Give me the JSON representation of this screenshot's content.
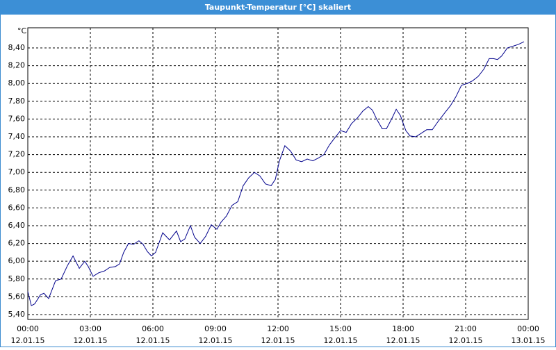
{
  "window_title": "Taupunkt-Temperatur [°C] skaliert",
  "chart_data": {
    "type": "line",
    "y_unit": "°C",
    "grid": true,
    "color": "#00008b",
    "x": [
      0,
      0.17,
      0.33,
      0.6,
      0.77,
      1,
      1.33,
      1.6,
      1.9,
      2.17,
      2.47,
      2.73,
      2.9,
      3.13,
      3.4,
      3.67,
      3.93,
      4.2,
      4.4,
      4.6,
      4.83,
      5.07,
      5.33,
      5.53,
      5.73,
      5.93,
      6.13,
      6.47,
      6.8,
      7.13,
      7.33,
      7.53,
      7.8,
      8,
      8.27,
      8.53,
      8.8,
      9.07,
      9.27,
      9.53,
      9.8,
      10.07,
      10.33,
      10.6,
      10.87,
      11.13,
      11.4,
      11.67,
      11.87,
      12.07,
      12.33,
      12.6,
      12.87,
      13.13,
      13.4,
      13.67,
      13.93,
      14.2,
      14.47,
      14.73,
      15,
      15.27,
      15.53,
      15.8,
      16.07,
      16.33,
      16.53,
      16.73,
      17,
      17.2,
      17.47,
      17.67,
      17.87,
      18.13,
      18.33,
      18.6,
      18.87,
      19.13,
      19.4,
      19.67,
      20,
      20.27,
      20.53,
      20.8,
      21.07,
      21.33,
      21.6,
      21.87,
      22.13,
      22.33,
      22.53,
      22.73,
      23,
      23.27,
      23.53,
      23.8
    ],
    "values": [
      5.66,
      5.5,
      5.52,
      5.62,
      5.64,
      5.58,
      5.78,
      5.8,
      5.95,
      6.06,
      5.92,
      6.0,
      5.94,
      5.83,
      5.87,
      5.89,
      5.93,
      5.94,
      5.97,
      6.1,
      6.2,
      6.19,
      6.23,
      6.19,
      6.11,
      6.06,
      6.1,
      6.32,
      6.24,
      6.34,
      6.22,
      6.25,
      6.4,
      6.27,
      6.2,
      6.28,
      6.41,
      6.36,
      6.44,
      6.51,
      6.63,
      6.67,
      6.85,
      6.94,
      7.0,
      6.96,
      6.87,
      6.85,
      6.92,
      7.13,
      7.3,
      7.24,
      7.14,
      7.12,
      7.15,
      7.13,
      7.16,
      7.2,
      7.31,
      7.39,
      7.47,
      7.45,
      7.55,
      7.61,
      7.69,
      7.74,
      7.7,
      7.6,
      7.49,
      7.49,
      7.61,
      7.71,
      7.64,
      7.47,
      7.41,
      7.4,
      7.44,
      7.48,
      7.48,
      7.57,
      7.67,
      7.75,
      7.85,
      7.98,
      8.0,
      8.03,
      8.08,
      8.16,
      8.28,
      8.28,
      8.27,
      8.31,
      8.4,
      8.42,
      8.44,
      8.47
    ],
    "xlim": [
      0,
      24
    ],
    "xticks": [
      {
        "value": 0,
        "label": "00:00"
      },
      {
        "value": 3,
        "label": "03:00"
      },
      {
        "value": 6,
        "label": "06:00"
      },
      {
        "value": 9,
        "label": "09:00"
      },
      {
        "value": 12,
        "label": "12:00"
      },
      {
        "value": 15,
        "label": "15:00"
      },
      {
        "value": 18,
        "label": "18:00"
      },
      {
        "value": 21,
        "label": "21:00"
      },
      {
        "value": 24,
        "label": "00:00"
      }
    ],
    "xtick_dates": [
      "12.01.15",
      "12.01.15",
      "12.01.15",
      "12.01.15",
      "12.01.15",
      "12.01.15",
      "12.01.15",
      "12.01.15",
      "13.01.15"
    ],
    "ylim": [
      5.345,
      8.627
    ],
    "yticks": [
      {
        "value": 5.4,
        "label": "5,40"
      },
      {
        "value": 5.6,
        "label": "5,60"
      },
      {
        "value": 5.8,
        "label": "5,80"
      },
      {
        "value": 6.0,
        "label": "6,00"
      },
      {
        "value": 6.2,
        "label": "6,20"
      },
      {
        "value": 6.4,
        "label": "6,40"
      },
      {
        "value": 6.6,
        "label": "6,60"
      },
      {
        "value": 6.8,
        "label": "6,80"
      },
      {
        "value": 7.0,
        "label": "7,00"
      },
      {
        "value": 7.2,
        "label": "7,20"
      },
      {
        "value": 7.4,
        "label": "7,40"
      },
      {
        "value": 7.6,
        "label": "7,60"
      },
      {
        "value": 7.8,
        "label": "7,80"
      },
      {
        "value": 8.0,
        "label": "8,00"
      },
      {
        "value": 8.2,
        "label": "8,20"
      },
      {
        "value": 8.4,
        "label": "8,40"
      }
    ]
  }
}
